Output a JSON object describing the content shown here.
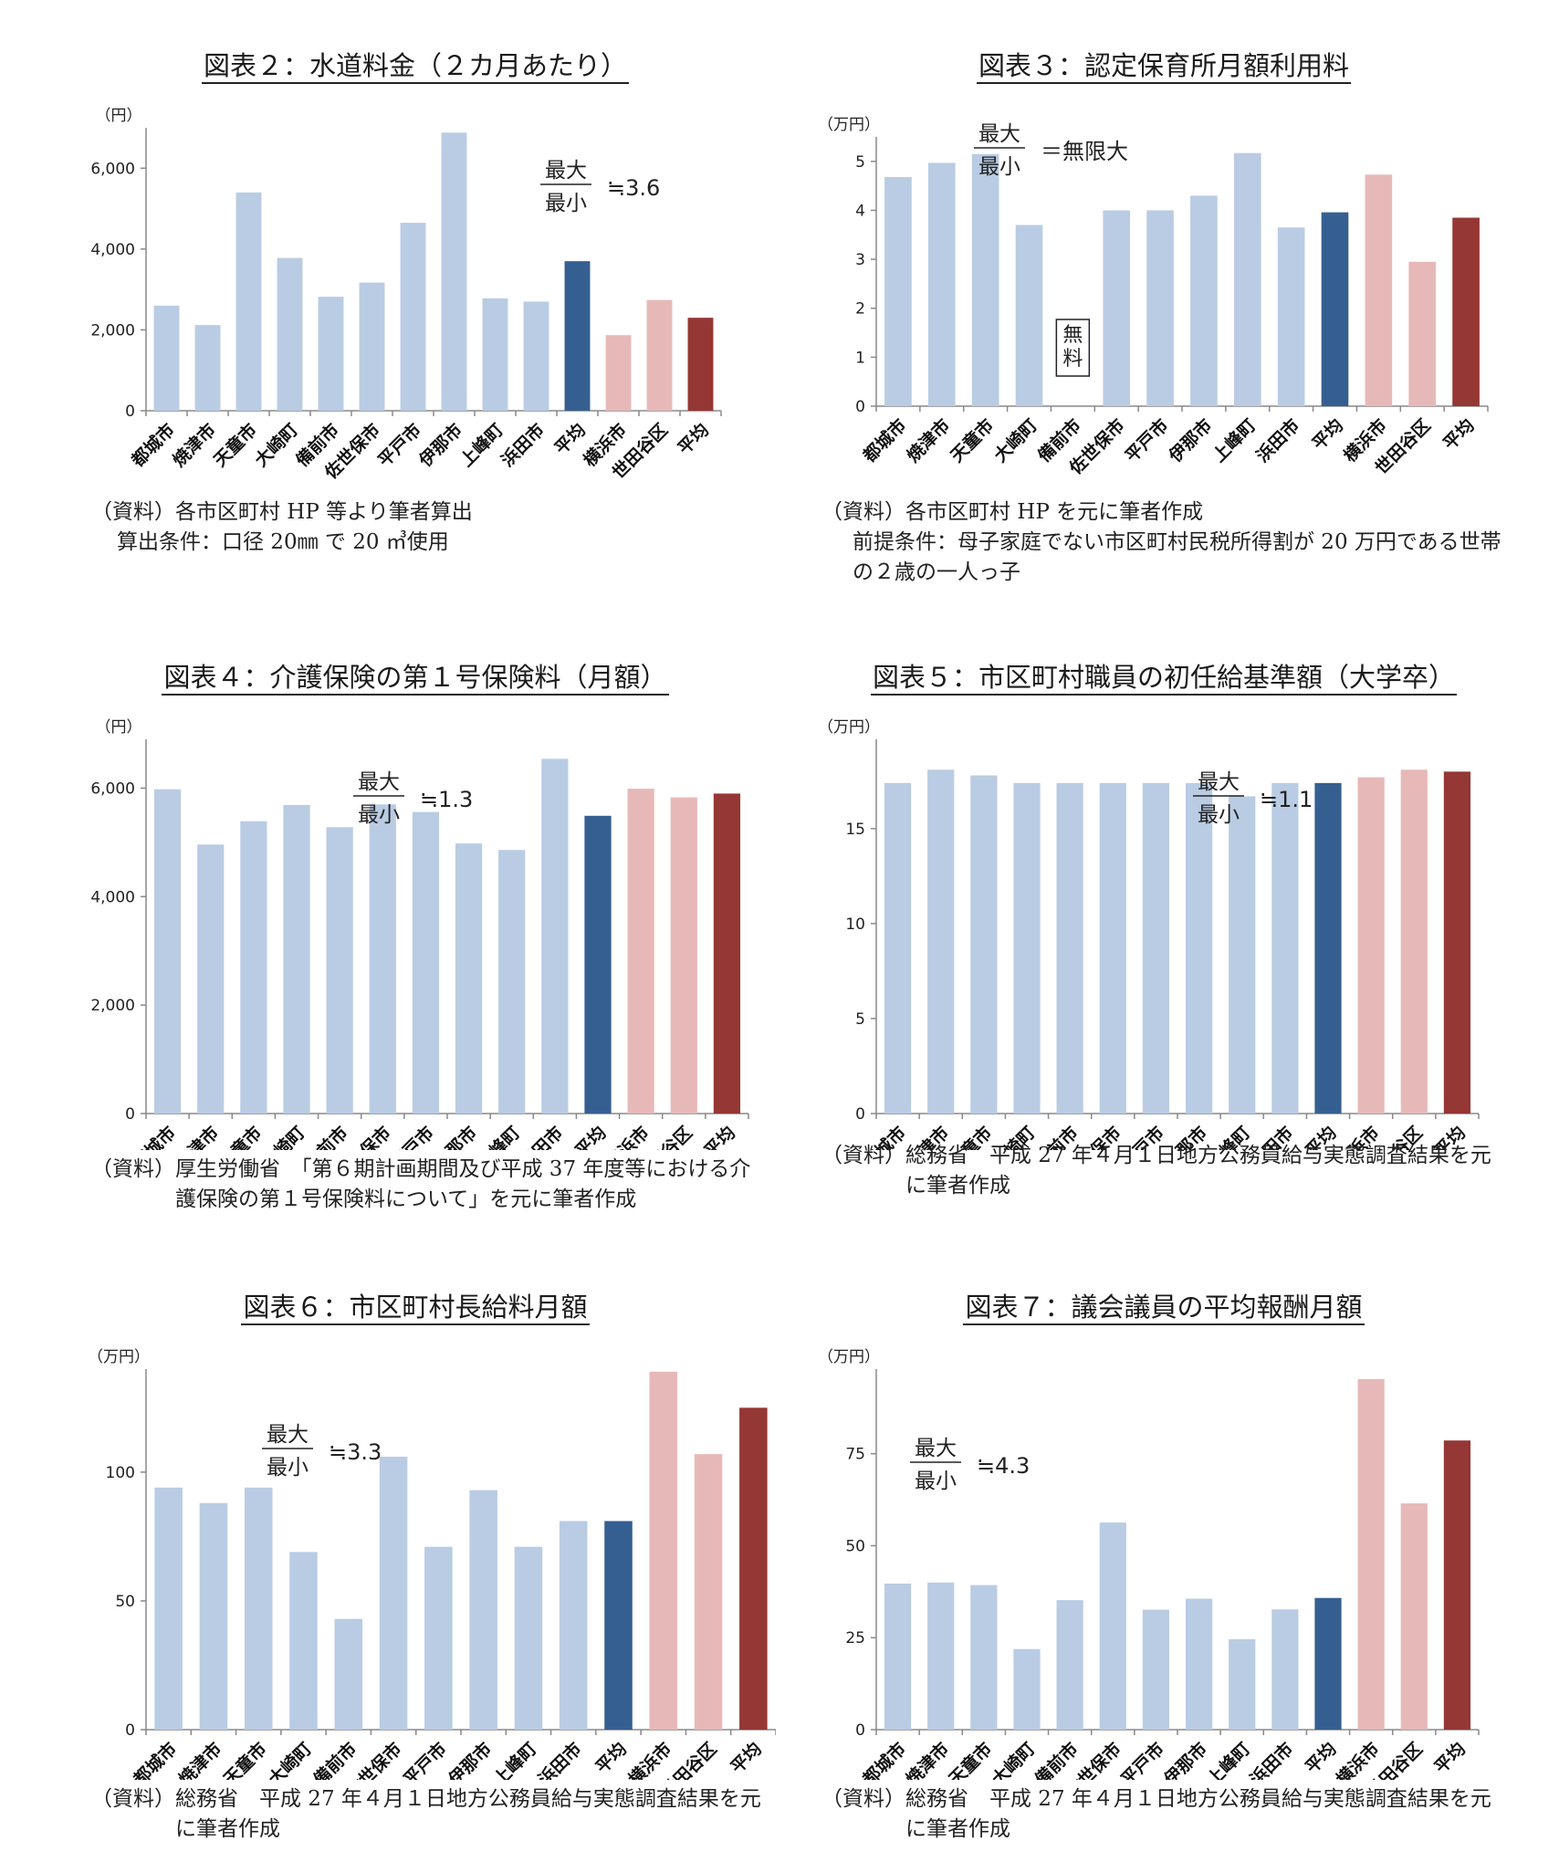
{
  "colors": {
    "cities": "#b9cce4",
    "average": "#365f91",
    "reference": "#e6b9b8",
    "reference_average": "#953735",
    "axis": "#888888"
  },
  "panels": [
    {
      "title": "図表２：水道料金（２カ月あたり）",
      "note": {
        "top": "最大",
        "bottom": "最小",
        "value": "≒3.6"
      },
      "source": {
        "label": "（資料）",
        "text": "各市区町村 HP 等より筆者算出",
        "condition": "算出条件：口径 20㎜ で 20 ㎥使用"
      }
    },
    {
      "title": "図表３：認定保育所月額利用料",
      "note": {
        "top": "最大",
        "bottom": "最小",
        "value": "＝無限大"
      },
      "free_label": "無料",
      "source": {
        "label": "（資料）",
        "text": "各市区町村 HP を元に筆者作成",
        "condition": "前提条件：母子家庭でない市区町村民税所得割が 20 万円である世帯の２歳の一人っ子"
      }
    },
    {
      "title": "図表４：介護保険の第１号保険料（月額）",
      "note": {
        "top": "最大",
        "bottom": "最小",
        "value": "≒1.3"
      },
      "source": {
        "label": "（資料）",
        "text": "厚生労働省　「第６期計画期間及び平成 37 年度等における介護保険の第１号保険料について」を元に筆者作成",
        "condition": ""
      }
    },
    {
      "title": "図表５：市区町村職員の初任給基準額（大学卒）",
      "note": {
        "top": "最大",
        "bottom": "最小",
        "value": "≒1.1"
      },
      "source": {
        "label": "（資料）",
        "text": "総務省　平成 27 年４月１日地方公務員給与実態調査結果を元に筆者作成",
        "condition": ""
      }
    },
    {
      "title": "図表６：市区町村長給料月額",
      "note": {
        "top": "最大",
        "bottom": "最小",
        "value": "≒3.3"
      },
      "source": {
        "label": "（資料）",
        "text": "総務省　平成 27 年４月１日地方公務員給与実態調査結果を元に筆者作成",
        "condition": ""
      }
    },
    {
      "title": "図表７：議会議員の平均報酬月額",
      "note": {
        "top": "最大",
        "bottom": "最小",
        "value": "≒4.3"
      },
      "source": {
        "label": "（資料）",
        "text": "総務省　平成 27 年４月１日地方公務員給与実態調査結果を元に筆者作成",
        "condition": ""
      }
    }
  ],
  "chart_data": [
    {
      "type": "bar",
      "categories": [
        "都城市",
        "焼津市",
        "天童市",
        "大崎町",
        "備前市",
        "佐世保市",
        "平戸市",
        "伊那市",
        "上峰町",
        "浜田市",
        "平均",
        "横浜市",
        "世田谷区",
        "平均"
      ],
      "values": [
        2600,
        2120,
        5400,
        3780,
        2820,
        3170,
        4650,
        6880,
        2780,
        2700,
        3700,
        1870,
        2740,
        2300
      ],
      "bar_groups": [
        "city",
        "city",
        "city",
        "city",
        "city",
        "city",
        "city",
        "city",
        "city",
        "city",
        "average",
        "reference",
        "reference",
        "reference_average"
      ],
      "title": "図表２：水道料金（２カ月あたり）",
      "ylabel": "（円）",
      "yticks": [
        "0",
        "2,000",
        "4,000",
        "6,000"
      ],
      "ytick_values": [
        0,
        2000,
        4000,
        6000
      ],
      "ylim": [
        0,
        7000
      ],
      "grid": false
    },
    {
      "type": "bar",
      "categories": [
        "都城市",
        "焼津市",
        "天童市",
        "大崎町",
        "備前市",
        "佐世保市",
        "平戸市",
        "伊那市",
        "上峰町",
        "浜田市",
        "平均",
        "横浜市",
        "世田谷区",
        "平均"
      ],
      "values": [
        4.68,
        4.97,
        5.15,
        3.7,
        0,
        4.0,
        4.0,
        4.3,
        5.17,
        3.65,
        3.96,
        4.73,
        2.95,
        3.85
      ],
      "bar_groups": [
        "city",
        "city",
        "city",
        "city",
        "city",
        "city",
        "city",
        "city",
        "city",
        "city",
        "average",
        "reference",
        "reference",
        "reference_average"
      ],
      "title": "図表３：認定保育所月額利用料",
      "ylabel": "（万円）",
      "yticks": [
        "0",
        "1",
        "2",
        "3",
        "4",
        "5"
      ],
      "ytick_values": [
        0,
        1,
        2,
        3,
        4,
        5
      ],
      "ylim": [
        0,
        5.5
      ],
      "grid": false
    },
    {
      "type": "bar",
      "categories": [
        "都城市",
        "焼津市",
        "天童市",
        "大崎町",
        "備前市",
        "佐世保市",
        "平戸市",
        "伊那市",
        "上峰町",
        "浜田市",
        "平均",
        "横浜市",
        "世田谷区",
        "平均"
      ],
      "values": [
        5980,
        4960,
        5390,
        5690,
        5280,
        5700,
        5560,
        4980,
        4860,
        6540,
        5490,
        5990,
        5830,
        5900
      ],
      "bar_groups": [
        "city",
        "city",
        "city",
        "city",
        "city",
        "city",
        "city",
        "city",
        "city",
        "city",
        "average",
        "reference",
        "reference",
        "reference_average"
      ],
      "title": "図表４：介護保険の第１号保険料（月額）",
      "ylabel": "（円）",
      "yticks": [
        "0",
        "2,000",
        "4,000",
        "6,000"
      ],
      "ytick_values": [
        0,
        2000,
        4000,
        6000
      ],
      "ylim": [
        0,
        6900
      ],
      "grid": false
    },
    {
      "type": "bar",
      "categories": [
        "都城市",
        "焼津市",
        "天童市",
        "大崎町",
        "備前市",
        "佐世保市",
        "平戸市",
        "伊那市",
        "上峰町",
        "浜田市",
        "平均",
        "横浜市",
        "世田谷区",
        "平均"
      ],
      "values": [
        17.4,
        18.1,
        17.8,
        17.4,
        17.4,
        17.4,
        17.4,
        17.4,
        16.7,
        17.4,
        17.4,
        17.7,
        18.1,
        18.0
      ],
      "bar_groups": [
        "city",
        "city",
        "city",
        "city",
        "city",
        "city",
        "city",
        "city",
        "city",
        "city",
        "average",
        "reference",
        "reference",
        "reference_average"
      ],
      "title": "図表５：市区町村職員の初任給基準額（大学卒）",
      "ylabel": "（万円）",
      "yticks": [
        "0",
        "5",
        "10",
        "15"
      ],
      "ytick_values": [
        0,
        5,
        10,
        15
      ],
      "ylim": [
        0,
        19.7
      ],
      "grid": false
    },
    {
      "type": "bar",
      "categories": [
        "都城市",
        "焼津市",
        "天童市",
        "大崎町",
        "備前市",
        "佐世保市",
        "平戸市",
        "伊那市",
        "上峰町",
        "浜田市",
        "平均",
        "横浜市",
        "世田谷区",
        "平均"
      ],
      "values": [
        94,
        88,
        94,
        69,
        43,
        106,
        71,
        93,
        71,
        81,
        81,
        139,
        107,
        125
      ],
      "bar_groups": [
        "city",
        "city",
        "city",
        "city",
        "city",
        "city",
        "city",
        "city",
        "city",
        "city",
        "average",
        "reference",
        "reference",
        "reference_average"
      ],
      "title": "図表６：市区町村長給料月額",
      "ylabel": "（万円）",
      "yticks": [
        "0",
        "50",
        "100"
      ],
      "ytick_values": [
        0,
        50,
        100
      ],
      "ylim": [
        0,
        140
      ],
      "grid": false
    },
    {
      "type": "bar",
      "categories": [
        "都城市",
        "焼津市",
        "天童市",
        "大崎町",
        "備前市",
        "佐世保市",
        "平戸市",
        "伊那市",
        "上峰町",
        "浜田市",
        "平均",
        "横浜市",
        "世田谷区",
        "平均"
      ],
      "values": [
        39.7,
        40.0,
        39.3,
        21.9,
        35.2,
        56.3,
        32.6,
        35.6,
        24.6,
        32.7,
        35.8,
        95.3,
        61.5,
        78.6
      ],
      "bar_groups": [
        "city",
        "city",
        "city",
        "city",
        "city",
        "city",
        "city",
        "city",
        "city",
        "city",
        "average",
        "reference",
        "reference",
        "reference_average"
      ],
      "title": "図表７：議会議員の平均報酬月額",
      "ylabel": "（万円）",
      "yticks": [
        "0",
        "25",
        "50",
        "75"
      ],
      "ytick_values": [
        0,
        25,
        50,
        75
      ],
      "ylim": [
        0,
        98
      ],
      "grid": false
    }
  ]
}
